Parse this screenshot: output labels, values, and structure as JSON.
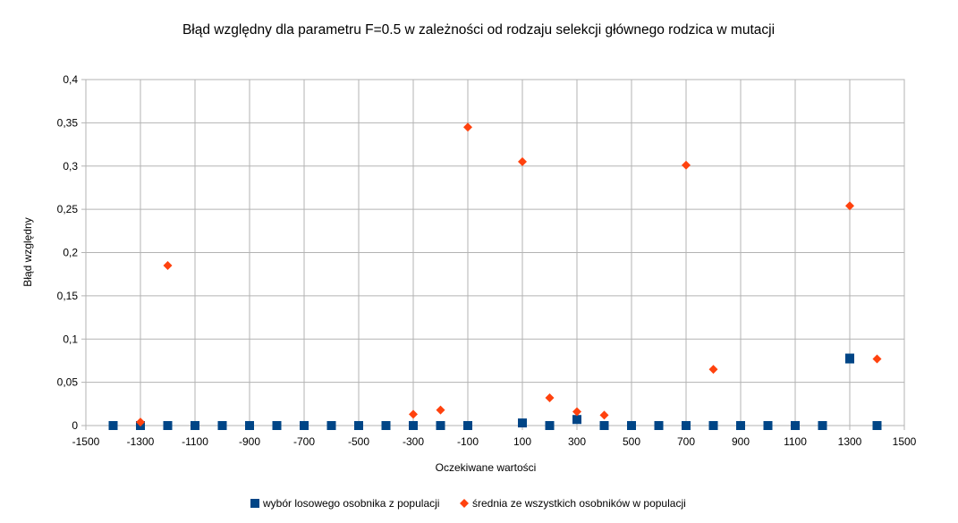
{
  "chart_data": {
    "type": "scatter",
    "title": "Błąd względny dla parametru F=0.5  w zależności od rodzaju selekcji głównego rodzica w mutacji",
    "xlabel": "Oczekiwane wartości",
    "ylabel": "Błąd względny",
    "xlim": [
      -1500,
      1500
    ],
    "ylim": [
      0,
      0.4
    ],
    "x_ticks": [
      -1500,
      -1300,
      -1100,
      -900,
      -700,
      -500,
      -300,
      -100,
      100,
      300,
      500,
      700,
      900,
      1100,
      1300,
      1500
    ],
    "x_tick_labels": [
      "-1500",
      "-1300",
      "-1100",
      "-900",
      "-700",
      "-500",
      "-300",
      "-100",
      "100",
      "300",
      "500",
      "700",
      "900",
      "1100",
      "1300",
      "1500"
    ],
    "y_ticks": [
      0,
      0.05,
      0.1,
      0.15,
      0.2,
      0.25,
      0.3,
      0.35,
      0.4
    ],
    "y_tick_labels": [
      "0",
      "0,05",
      "0,1",
      "0,15",
      "0,2",
      "0,25",
      "0,3",
      "0,35",
      "0,4"
    ],
    "grid": true,
    "legend_position": "bottom",
    "series": [
      {
        "name": "wybór losowego osobnika z populacji",
        "marker": "square",
        "color": "#004586",
        "points": [
          [
            -1400,
            0
          ],
          [
            -1300,
            0
          ],
          [
            -1200,
            0
          ],
          [
            -1100,
            0
          ],
          [
            -1000,
            0
          ],
          [
            -900,
            0
          ],
          [
            -800,
            0
          ],
          [
            -700,
            0
          ],
          [
            -600,
            0
          ],
          [
            -500,
            0
          ],
          [
            -400,
            0
          ],
          [
            -300,
            0
          ],
          [
            -200,
            0
          ],
          [
            -100,
            0
          ],
          [
            100,
            0.003
          ],
          [
            200,
            0
          ],
          [
            300,
            0.007
          ],
          [
            400,
            0
          ],
          [
            500,
            0
          ],
          [
            600,
            0
          ],
          [
            700,
            0
          ],
          [
            800,
            0
          ],
          [
            900,
            0
          ],
          [
            1000,
            0
          ],
          [
            1100,
            0
          ],
          [
            1200,
            0
          ],
          [
            1300,
            0.078
          ],
          [
            1300,
            0.077
          ],
          [
            1400,
            0
          ]
        ]
      },
      {
        "name": "średnia ze wszystkich osobników w populacji",
        "marker": "diamond",
        "color": "#ff420e",
        "points": [
          [
            -1300,
            0.004
          ],
          [
            -1200,
            0.185
          ],
          [
            -300,
            0.013
          ],
          [
            -200,
            0.018
          ],
          [
            -100,
            0.345
          ],
          [
            100,
            0.305
          ],
          [
            200,
            0.032
          ],
          [
            300,
            0.016
          ],
          [
            400,
            0.012
          ],
          [
            700,
            0.301
          ],
          [
            800,
            0.065
          ],
          [
            1300,
            0.254
          ],
          [
            1400,
            0.077
          ]
        ]
      }
    ]
  }
}
